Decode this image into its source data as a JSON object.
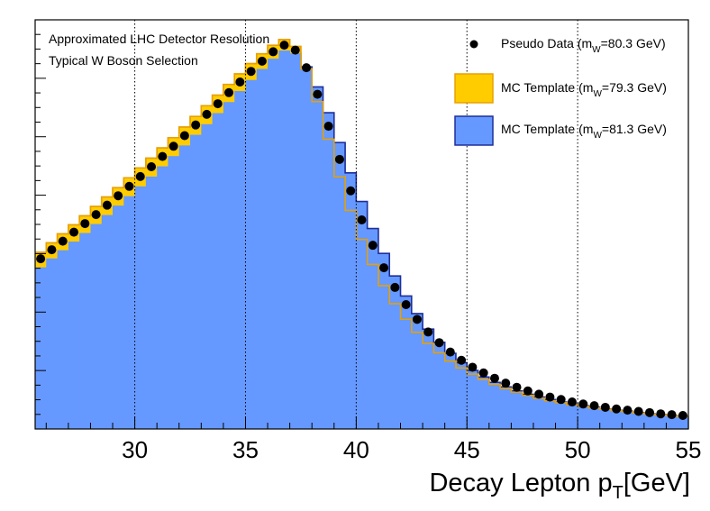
{
  "chart_data": {
    "type": "histogram",
    "title": "",
    "xlabel": "Decay Lepton p",
    "xlabel_sub": "T",
    "xlabel_unit": "[GeV]",
    "ylabel": "",
    "xlim": [
      25.5,
      55
    ],
    "ylim": [
      0,
      1.0
    ],
    "x_ticks": [
      30,
      35,
      40,
      45,
      50,
      55
    ],
    "x_tick_labels": [
      "30",
      "35",
      "40",
      "45",
      "50",
      "55"
    ],
    "grid_x": [
      30,
      35,
      40,
      45,
      50
    ],
    "bin_width": 0.5,
    "bin_start": 25.5,
    "annotations": [
      "Approximated LHC Detector Resolution",
      "Typical W Boson Selection"
    ],
    "legend": {
      "position": "top-right",
      "entries": [
        {
          "key": "data",
          "prefix": "Pseudo Data (m",
          "sub": "W",
          "suffix": "=80.3 GeV)",
          "color": "#000000"
        },
        {
          "key": "mc_low",
          "prefix": "MC Template (m",
          "sub": "W",
          "suffix": "=79.3 GeV)",
          "color": "#ffcc00"
        },
        {
          "key": "mc_high",
          "prefix": "MC Template (m",
          "sub": "W",
          "suffix": "=81.3 GeV)",
          "color": "#6699ff"
        }
      ]
    },
    "series": [
      {
        "name": "MC Template (mW=81.3 GeV)",
        "color": "#6699ff",
        "edge": "#1f2f9a",
        "values": [
          0.395,
          0.417,
          0.437,
          0.458,
          0.479,
          0.501,
          0.523,
          0.546,
          0.569,
          0.593,
          0.617,
          0.642,
          0.667,
          0.693,
          0.719,
          0.745,
          0.772,
          0.799,
          0.826,
          0.853,
          0.88,
          0.905,
          0.925,
          0.918,
          0.885,
          0.836,
          0.773,
          0.7,
          0.626,
          0.556,
          0.49,
          0.429,
          0.374,
          0.325,
          0.282,
          0.244,
          0.212,
          0.185,
          0.162,
          0.143,
          0.127,
          0.114,
          0.103,
          0.093,
          0.085,
          0.078,
          0.072,
          0.066,
          0.061,
          0.057,
          0.053,
          0.049,
          0.046,
          0.043,
          0.04,
          0.037,
          0.035,
          0.033,
          0.031
        ]
      },
      {
        "name": "MC Template (mW=79.3 GeV)",
        "color": "#ffcc00",
        "edge": "#e8a000",
        "values": [
          0.432,
          0.455,
          0.477,
          0.499,
          0.521,
          0.544,
          0.567,
          0.59,
          0.614,
          0.638,
          0.662,
          0.687,
          0.712,
          0.738,
          0.764,
          0.79,
          0.816,
          0.842,
          0.868,
          0.893,
          0.917,
          0.938,
          0.952,
          0.935,
          0.88,
          0.8,
          0.708,
          0.616,
          0.534,
          0.463,
          0.402,
          0.35,
          0.306,
          0.268,
          0.236,
          0.209,
          0.186,
          0.166,
          0.149,
          0.134,
          0.121,
          0.109,
          0.099,
          0.09,
          0.082,
          0.075,
          0.069,
          0.064,
          0.059,
          0.055,
          0.051,
          0.048,
          0.045,
          0.042,
          0.039,
          0.036,
          0.034,
          0.032,
          0.03
        ]
      },
      {
        "name": "Pseudo Data (mW=80.3 GeV)",
        "color": "#000000",
        "values": [
          0.416,
          0.438,
          0.459,
          0.481,
          0.502,
          0.524,
          0.547,
          0.57,
          0.593,
          0.617,
          0.641,
          0.666,
          0.691,
          0.717,
          0.743,
          0.769,
          0.795,
          0.822,
          0.848,
          0.874,
          0.899,
          0.922,
          0.938,
          0.926,
          0.883,
          0.818,
          0.74,
          0.659,
          0.582,
          0.511,
          0.449,
          0.394,
          0.346,
          0.304,
          0.268,
          0.237,
          0.211,
          0.188,
          0.168,
          0.151,
          0.137,
          0.124,
          0.112,
          0.102,
          0.093,
          0.085,
          0.078,
          0.072,
          0.066,
          0.061,
          0.057,
          0.053,
          0.049,
          0.046,
          0.043,
          0.04,
          0.037,
          0.035,
          0.033
        ]
      }
    ]
  }
}
